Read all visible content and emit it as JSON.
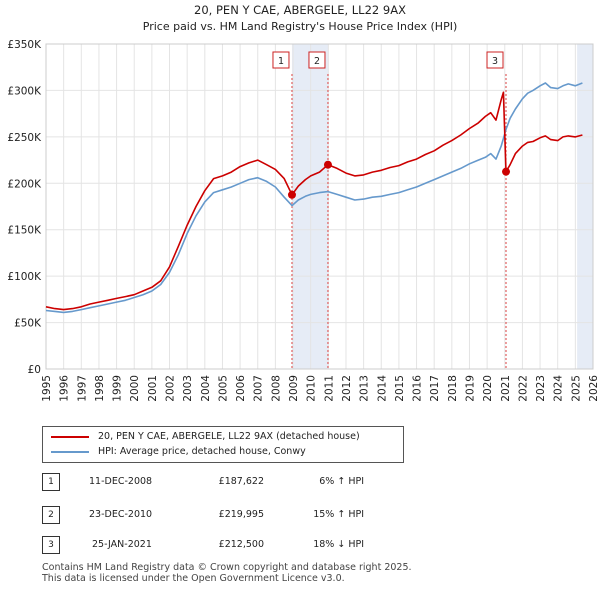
{
  "chart_data": {
    "type": "line",
    "title": "20, PEN Y CAE, ABERGELE, LL22 9AX",
    "subtitle": "Price paid vs. HM Land Registry's House Price Index (HPI)",
    "xlabel": "",
    "ylabel": "",
    "xlim": [
      1995,
      2026
    ],
    "ylim": [
      0,
      350000
    ],
    "x_ticks": [
      "1995",
      "1996",
      "1997",
      "1998",
      "1999",
      "2000",
      "2001",
      "2002",
      "2003",
      "2004",
      "2005",
      "2006",
      "2007",
      "2008",
      "2009",
      "2010",
      "2011",
      "2012",
      "2013",
      "2014",
      "2015",
      "2016",
      "2017",
      "2018",
      "2019",
      "2020",
      "2021",
      "2022",
      "2023",
      "2024",
      "2025",
      "2026"
    ],
    "y_ticks": [
      {
        "value": 0,
        "label": "£0"
      },
      {
        "value": 50000,
        "label": "£50K"
      },
      {
        "value": 100000,
        "label": "£100K"
      },
      {
        "value": 150000,
        "label": "£150K"
      },
      {
        "value": 200000,
        "label": "£200K"
      },
      {
        "value": 250000,
        "label": "£250K"
      },
      {
        "value": 300000,
        "label": "£300K"
      },
      {
        "value": 350000,
        "label": "£350K"
      }
    ],
    "grid": true,
    "series": [
      {
        "name": "20, PEN Y CAE, ABERGELE, LL22 9AX (detached house)",
        "color": "#cc0000",
        "x": [
          1995,
          1995.5,
          1996,
          1996.5,
          1997,
          1997.5,
          1998,
          1998.5,
          1999,
          1999.5,
          2000,
          2000.5,
          2001,
          2001.5,
          2002,
          2002.5,
          2003,
          2003.5,
          2004,
          2004.5,
          2005,
          2005.5,
          2006,
          2006.5,
          2007,
          2007.5,
          2008,
          2008.5,
          2008.94,
          2009.3,
          2009.7,
          2010,
          2010.5,
          2010.98,
          2011.5,
          2012,
          2012.5,
          2013,
          2013.5,
          2014,
          2014.5,
          2015,
          2015.5,
          2016,
          2016.5,
          2017,
          2017.5,
          2018,
          2018.5,
          2019,
          2019.5,
          2019.9,
          2020.2,
          2020.5,
          2020.8,
          2020.92,
          2021.07,
          2021.3,
          2021.6,
          2022,
          2022.3,
          2022.6,
          2023,
          2023.3,
          2023.6,
          2024,
          2024.3,
          2024.6,
          2025,
          2025.4
        ],
        "values": [
          67000,
          65000,
          64000,
          65000,
          67000,
          70000,
          72000,
          74000,
          76000,
          78000,
          80000,
          84000,
          88000,
          95000,
          110000,
          132000,
          155000,
          175000,
          192000,
          205000,
          208000,
          212000,
          218000,
          222000,
          225000,
          220000,
          215000,
          205000,
          187622,
          197000,
          204000,
          208000,
          212000,
          219995,
          216000,
          211000,
          208000,
          209000,
          212000,
          214000,
          217000,
          219000,
          223000,
          226000,
          231000,
          235000,
          241000,
          246000,
          252000,
          259000,
          265000,
          272000,
          276000,
          268000,
          290000,
          298000,
          212500,
          220000,
          232000,
          240000,
          244000,
          245000,
          249000,
          251000,
          247000,
          246000,
          250000,
          251000,
          250000,
          252000
        ]
      },
      {
        "name": "HPI: Average price, detached house, Conwy",
        "color": "#6699cc",
        "x": [
          1995,
          1995.5,
          1996,
          1996.5,
          1997,
          1997.5,
          1998,
          1998.5,
          1999,
          1999.5,
          2000,
          2000.5,
          2001,
          2001.5,
          2002,
          2002.5,
          2003,
          2003.5,
          2004,
          2004.5,
          2005,
          2005.5,
          2006,
          2006.5,
          2007,
          2007.5,
          2008,
          2008.5,
          2008.94,
          2009.3,
          2009.7,
          2010,
          2010.5,
          2010.98,
          2011.5,
          2012,
          2012.5,
          2013,
          2013.5,
          2014,
          2014.5,
          2015,
          2015.5,
          2016,
          2016.5,
          2017,
          2017.5,
          2018,
          2018.5,
          2019,
          2019.5,
          2019.9,
          2020.2,
          2020.5,
          2020.8,
          2021.07,
          2021.3,
          2021.6,
          2022,
          2022.3,
          2022.6,
          2023,
          2023.3,
          2023.6,
          2024,
          2024.3,
          2024.6,
          2025,
          2025.4
        ],
        "values": [
          63000,
          62000,
          61000,
          62000,
          64000,
          66000,
          68000,
          70000,
          72000,
          74000,
          77000,
          80000,
          84000,
          91000,
          104000,
          123000,
          146000,
          165000,
          180000,
          190000,
          193000,
          196000,
          200000,
          204000,
          206000,
          202000,
          196000,
          185000,
          176000,
          182000,
          186000,
          188000,
          190000,
          191000,
          188000,
          185000,
          182000,
          183000,
          185000,
          186000,
          188000,
          190000,
          193000,
          196000,
          200000,
          204000,
          208000,
          212000,
          216000,
          221000,
          225000,
          228000,
          232000,
          226000,
          240000,
          258000,
          270000,
          280000,
          291000,
          297000,
          300000,
          305000,
          308000,
          303000,
          302000,
          305000,
          307000,
          305000,
          308000
        ]
      }
    ],
    "transactions": [
      {
        "id": "1",
        "x": 2008.94,
        "value": 187622,
        "date": "11-DEC-2008",
        "price": "£187,622",
        "hpi": "6% ↑ HPI"
      },
      {
        "id": "2",
        "x": 2010.98,
        "value": 219995,
        "date": "23-DEC-2010",
        "price": "£219,995",
        "hpi": "15% ↑ HPI"
      },
      {
        "id": "3",
        "x": 2021.07,
        "value": 212500,
        "date": "25-JAN-2021",
        "price": "£212,500",
        "hpi": "18% ↓ HPI"
      }
    ],
    "shaded_ranges": [
      [
        2008.94,
        2010.98
      ],
      [
        2025.1,
        2026
      ]
    ]
  },
  "legend": {
    "property_label": "20, PEN Y CAE, ABERGELE, LL22 9AX (detached house)",
    "hpi_label": "HPI: Average price, detached house, Conwy"
  },
  "footer": {
    "line1": "Contains HM Land Registry data © Crown copyright and database right 2025.",
    "line2": "This data is licensed under the Open Government Licence v3.0."
  }
}
